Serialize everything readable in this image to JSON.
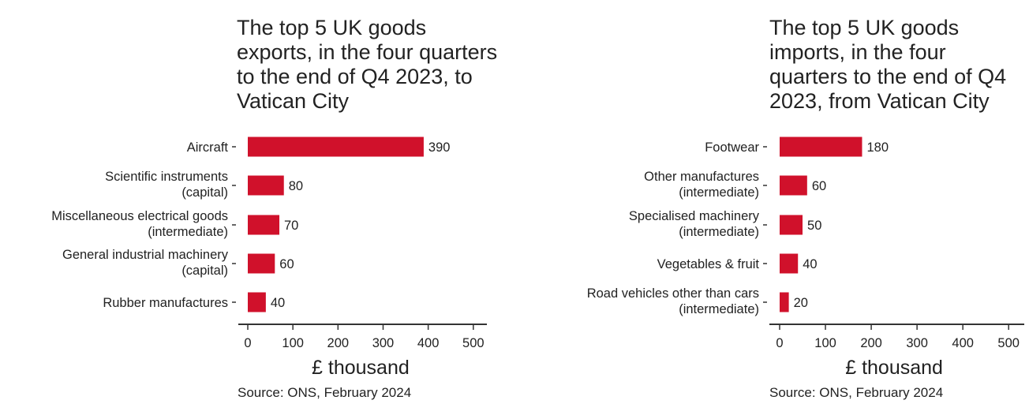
{
  "chart_data": [
    {
      "type": "bar",
      "orientation": "horizontal",
      "title": "The top 5 UK goods exports, in the four quarters to the end of Q4 2023, to Vatican City",
      "categories": [
        [
          "Aircraft"
        ],
        [
          "Scientific instruments",
          "(capital)"
        ],
        [
          "Miscellaneous electrical goods",
          "(intermediate)"
        ],
        [
          "General industrial machinery",
          "(capital)"
        ],
        [
          "Rubber manufactures"
        ]
      ],
      "values": [
        390,
        80,
        70,
        60,
        40
      ],
      "value_labels": [
        "390",
        "80",
        "70",
        "60",
        "40"
      ],
      "xlabel": "£ thousand",
      "xlim": [
        0,
        500
      ],
      "xticks": [
        0,
        100,
        200,
        300,
        400,
        500
      ],
      "xtick_labels": [
        "0",
        "100",
        "200",
        "300",
        "400",
        "500"
      ],
      "bar_color": "#d0112b",
      "grid": false,
      "source": "Source: ONS, February 2024"
    },
    {
      "type": "bar",
      "orientation": "horizontal",
      "title": "The top 5 UK goods imports, in the four quarters to the end of Q4 2023, from Vatican City",
      "categories": [
        [
          "Footwear"
        ],
        [
          "Other manufactures",
          "(intermediate)"
        ],
        [
          "Specialised machinery",
          "(intermediate)"
        ],
        [
          "Vegetables & fruit"
        ],
        [
          "Road vehicles other than cars",
          "(intermediate)"
        ]
      ],
      "values": [
        180,
        60,
        50,
        40,
        20
      ],
      "value_labels": [
        "180",
        "60",
        "50",
        "40",
        "20"
      ],
      "xlabel": "£ thousand",
      "xlim": [
        0,
        500
      ],
      "xticks": [
        0,
        100,
        200,
        300,
        400,
        500
      ],
      "xtick_labels": [
        "0",
        "100",
        "200",
        "300",
        "400",
        "500"
      ],
      "bar_color": "#d0112b",
      "grid": false,
      "source": "Source: ONS, February 2024"
    }
  ]
}
